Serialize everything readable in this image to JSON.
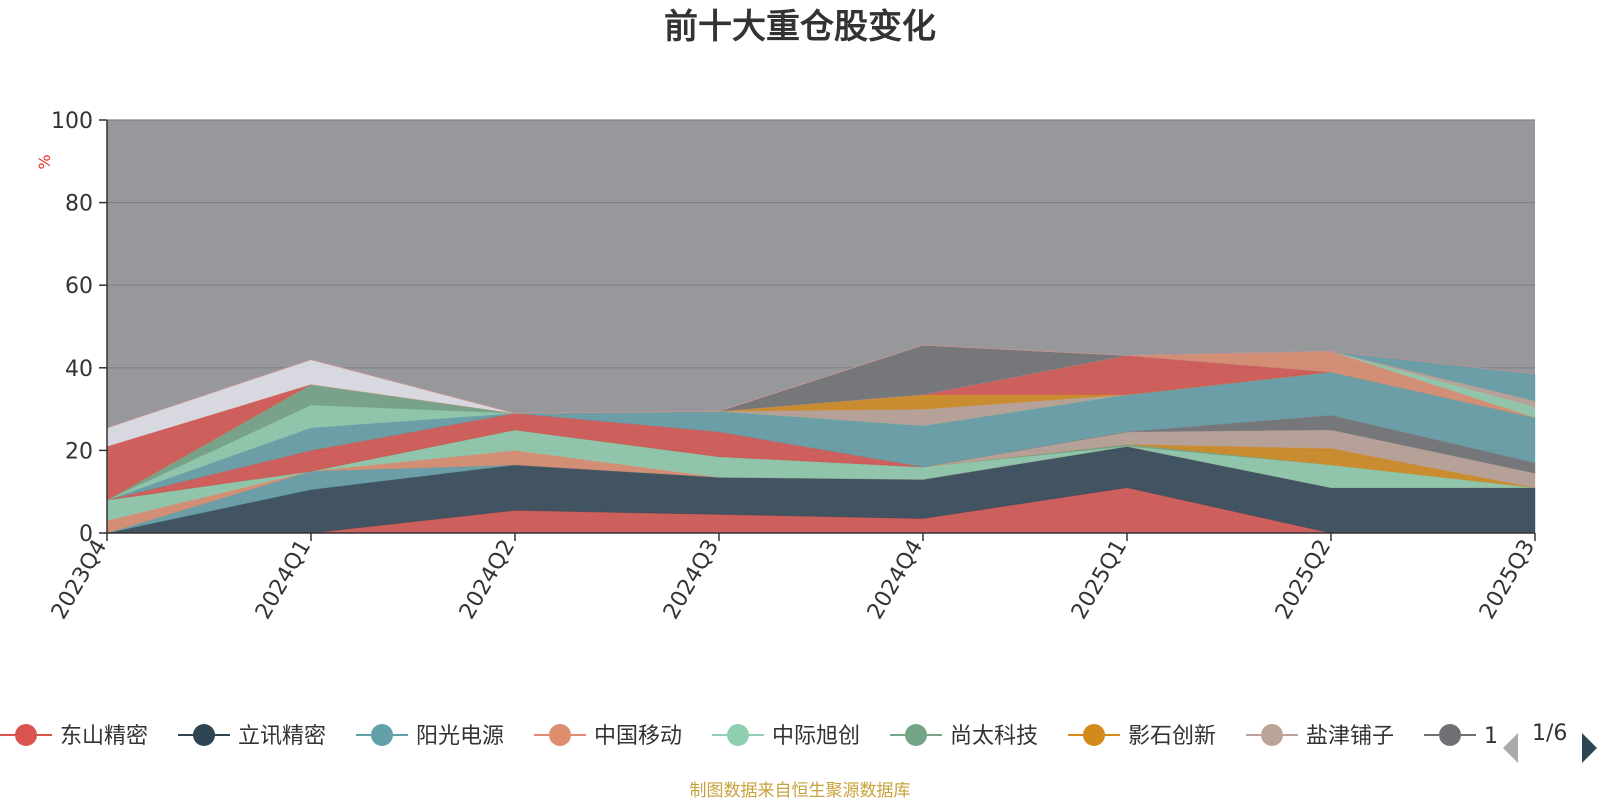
{
  "chart_data": {
    "type": "area",
    "stacked": true,
    "title": "前十大重仓股变化",
    "ylabel": "%",
    "ylim": [
      0,
      100
    ],
    "yticks": [
      0,
      20,
      40,
      60,
      80,
      100
    ],
    "grid": true,
    "legend_position": "bottom",
    "categories": [
      "2023Q4",
      "2024Q1",
      "2024Q2",
      "2024Q3",
      "2024Q4",
      "2025Q1",
      "2025Q2",
      "2025Q3"
    ],
    "series": [
      {
        "name": "东山精密",
        "color": "#d9534f",
        "values": [
          0,
          0,
          5.5,
          4.5,
          3.5,
          11,
          0,
          0
        ]
      },
      {
        "name": "立讯精密",
        "color": "#2f4554",
        "values": [
          0,
          10.5,
          11,
          9,
          9.5,
          10,
          11,
          11
        ]
      },
      {
        "name": "阳光电源",
        "color": "#61a0a8",
        "values": [
          0,
          4.5,
          0,
          0,
          0,
          0,
          0,
          0
        ]
      },
      {
        "name": "中国移动",
        "color": "#e08c6e",
        "values": [
          3,
          0,
          3.5,
          0,
          0,
          0,
          0,
          0
        ]
      },
      {
        "name": "中际旭创",
        "color": "#8fcfb0",
        "values": [
          5,
          0,
          5,
          5,
          3,
          0,
          5.5,
          0
        ]
      },
      {
        "name": "尚太科技",
        "color": "#73a586",
        "values": [
          0,
          0,
          0,
          0,
          0,
          0.5,
          0,
          0
        ]
      },
      {
        "name": "影石创新",
        "color": "#d48a1a",
        "values": [
          0,
          0,
          0,
          0,
          0,
          0,
          4,
          0
        ]
      },
      {
        "name": "盐津铺子",
        "color": "#bca397",
        "values": [
          0,
          0,
          0,
          0,
          0,
          3,
          4.5,
          3.5
        ]
      },
      {
        "name": "",
        "color": "#6e7074",
        "values": [
          0,
          0,
          0,
          0,
          0,
          0,
          3.5,
          2.5
        ]
      },
      {
        "name": "",
        "color": "#d9534f",
        "values": [
          0,
          5,
          4,
          6,
          0,
          0,
          0,
          0
        ]
      },
      {
        "name": "",
        "color": "#61a0a8",
        "values": [
          0,
          5.5,
          0,
          5,
          10,
          9,
          10.5,
          11
        ]
      },
      {
        "name": "",
        "color": "#8fcfb0",
        "values": [
          0,
          5.5,
          0,
          0,
          0,
          0,
          0,
          0
        ]
      },
      {
        "name": "",
        "color": "#73a586",
        "values": [
          0,
          5,
          0,
          0,
          0,
          0,
          0,
          0
        ]
      },
      {
        "name": "",
        "color": "#bca397",
        "values": [
          0,
          0,
          0,
          0,
          4,
          0,
          0,
          0
        ]
      },
      {
        "name": "",
        "color": "#d48a1a",
        "values": [
          0,
          0,
          0,
          0,
          3.5,
          0,
          0,
          0
        ]
      },
      {
        "name": "",
        "color": "#d9534f",
        "values": [
          13,
          0,
          0,
          0,
          0,
          9.5,
          0,
          0
        ]
      },
      {
        "name": "",
        "color": "#e6e8ef",
        "values": [
          4.5,
          6,
          0,
          0,
          0,
          0,
          0,
          0
        ]
      },
      {
        "name": "",
        "color": "#6e7074",
        "values": [
          0,
          0,
          0,
          0,
          12,
          0,
          0,
          0
        ]
      },
      {
        "name": "",
        "color": "#e08c6e",
        "values": [
          0,
          0,
          0,
          0,
          0,
          0,
          5,
          0
        ]
      },
      {
        "name": "",
        "color": "#8fcfb0",
        "values": [
          0,
          0,
          0,
          0,
          0,
          0,
          0,
          2.5
        ]
      },
      {
        "name": "",
        "color": "#bca397",
        "values": [
          0,
          0,
          0,
          0,
          0,
          0,
          0,
          1.5
        ]
      },
      {
        "name": "",
        "color": "#61a0a8",
        "values": [
          0,
          0,
          0,
          0,
          0,
          0,
          0,
          6.5
        ]
      },
      {
        "name": "",
        "color": "#e6e8ef",
        "values": [
          0,
          0,
          0,
          0,
          0,
          0,
          0,
          0
        ]
      },
      {
        "name": "",
        "color": "#d9534f",
        "values": [
          0,
          0,
          0,
          0,
          0,
          0,
          0,
          0
        ]
      }
    ],
    "legend_page": "1/6",
    "legend_items": [
      {
        "name": "东山精密",
        "color": "#d9534f"
      },
      {
        "name": "立讯精密",
        "color": "#2f4554"
      },
      {
        "name": "阳光电源",
        "color": "#61a0a8"
      },
      {
        "name": "中国移动",
        "color": "#e08c6e"
      },
      {
        "name": "中际旭创",
        "color": "#8fcfb0"
      },
      {
        "name": "尚太科技",
        "color": "#73a586"
      },
      {
        "name": "影石创新",
        "color": "#d48a1a"
      },
      {
        "name": "盐津铺子",
        "color": "#bca397"
      },
      {
        "name": "1",
        "color": "#6e7074"
      }
    ],
    "source": "制图数据来自恒生聚源数据库"
  }
}
